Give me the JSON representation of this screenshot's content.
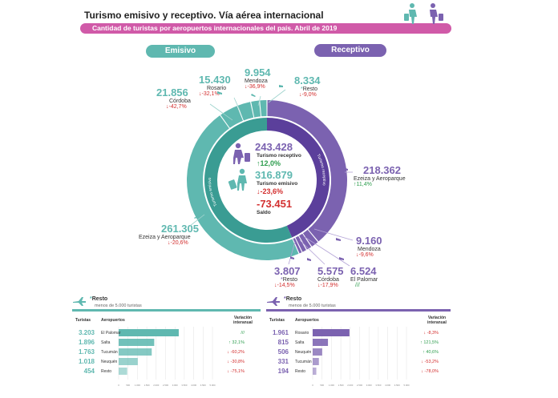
{
  "header": {
    "title": "Turismo emisivo y receptivo. Vía aérea internacional",
    "subtitle": "Cantidad de turistas por aeropuertos internacionales del país. Abril de 2019"
  },
  "sections": {
    "emisivo": "Emisivo",
    "receptivo": "Receptivo"
  },
  "center": {
    "receptivo_value": "243.428",
    "receptivo_label": "Turismo receptivo",
    "receptivo_change": "12,0%",
    "emisivo_value": "316.879",
    "emisivo_label": "Turismo emisivo",
    "emisivo_change": "-23,6%",
    "saldo_value": "-73.451",
    "saldo_label": "Saldo"
  },
  "ring_labels": {
    "emisivo": "Turismo emisivo",
    "receptivo": "Turismo receptivo"
  },
  "callouts": {
    "em_cordoba": {
      "value": "21.856",
      "name": "Córdoba",
      "change": "-42,7%"
    },
    "em_rosario": {
      "value": "15.430",
      "name": "Rosario",
      "change": "-32,1%"
    },
    "em_mendoza": {
      "value": "9.954",
      "name": "Mendoza",
      "change": "-36,9%"
    },
    "em_resto": {
      "value": "8.334",
      "name": "Resto",
      "change": "-9,0%"
    },
    "em_ezeiza": {
      "value": "261.305",
      "name": "Ezeiza y Aeroparque",
      "change": "-20,6%"
    },
    "re_ezeiza": {
      "value": "218.362",
      "name": "Ezeiza y Aeroparque",
      "change": "11,4%"
    },
    "re_mendoza": {
      "value": "9.160",
      "name": "Mendoza",
      "change": "-9,6%"
    },
    "re_palomar": {
      "value": "6.524",
      "name": "El Palomar",
      "change": "///"
    },
    "re_cordoba": {
      "value": "5.575",
      "name": "Córdoba",
      "change": "-17,9%"
    },
    "re_resto": {
      "value": "3.807",
      "name": "Resto",
      "change": "-14,5%"
    }
  },
  "colors": {
    "teal": "#5fb8b0",
    "teal_dark": "#3a9c93",
    "purple": "#7b62b0",
    "purple_dark": "#5b3f9b",
    "pink": "#d05aa8",
    "green": "#2e9d4e",
    "red": "#d32f2f"
  },
  "panels": {
    "emisivo": {
      "title": "Resto",
      "subtitle": "menos de 5.000 turistas",
      "col_turistas": "Turistas",
      "col_aeropuertos": "Aeropuertos",
      "col_variacion": "Variación interanual",
      "rows": [
        {
          "value": "3.203",
          "name": "El Palomar",
          "change": "///"
        },
        {
          "value": "1.896",
          "name": "Salta",
          "change": "32,1%"
        },
        {
          "value": "1.763",
          "name": "Tucumán",
          "change": "-60,2%"
        },
        {
          "value": "1.018",
          "name": "Neuquén",
          "change": "-30,8%"
        },
        {
          "value": "454",
          "name": "Resto",
          "change": "-75,1%"
        }
      ]
    },
    "receptivo": {
      "title": "Resto",
      "subtitle": "menos de 5.000 turistas",
      "col_turistas": "Turistas",
      "col_aeropuertos": "Aeropuertos",
      "col_variacion": "Variación interanual",
      "rows": [
        {
          "value": "1.961",
          "name": "Rosario",
          "change": "-8,3%"
        },
        {
          "value": "815",
          "name": "Salta",
          "change": "121,5%"
        },
        {
          "value": "506",
          "name": "Neuquén",
          "change": "40,6%"
        },
        {
          "value": "331",
          "name": "Tucumán",
          "change": "-53,2%"
        },
        {
          "value": "194",
          "name": "Resto",
          "change": "-78,0%"
        }
      ]
    }
  },
  "chart_data": [
    {
      "type": "pie",
      "title": "Turismo emisivo",
      "categories": [
        "Ezeiza y Aeroparque",
        "Córdoba",
        "Rosario",
        "Mendoza",
        "Resto"
      ],
      "values": [
        261305,
        21856,
        15430,
        9954,
        8334
      ]
    },
    {
      "type": "pie",
      "title": "Turismo receptivo",
      "categories": [
        "Ezeiza y Aeroparque",
        "Mendoza",
        "El Palomar",
        "Córdoba",
        "Resto"
      ],
      "values": [
        218362,
        9160,
        6524,
        5575,
        3807
      ]
    },
    {
      "type": "bar",
      "title": "Resto",
      "categories": [
        "El Palomar",
        "Salta",
        "Tucumán",
        "Neuquén",
        "Resto"
      ],
      "values": [
        3203,
        1896,
        1763,
        1018,
        454
      ],
      "xlim": [
        0,
        5000
      ]
    },
    {
      "type": "bar",
      "title": "Resto",
      "categories": [
        "Rosario",
        "Salta",
        "Neuquén",
        "Tucumán",
        "Resto"
      ],
      "values": [
        1961,
        815,
        506,
        331,
        194
      ],
      "xlim": [
        0,
        5000
      ]
    }
  ]
}
